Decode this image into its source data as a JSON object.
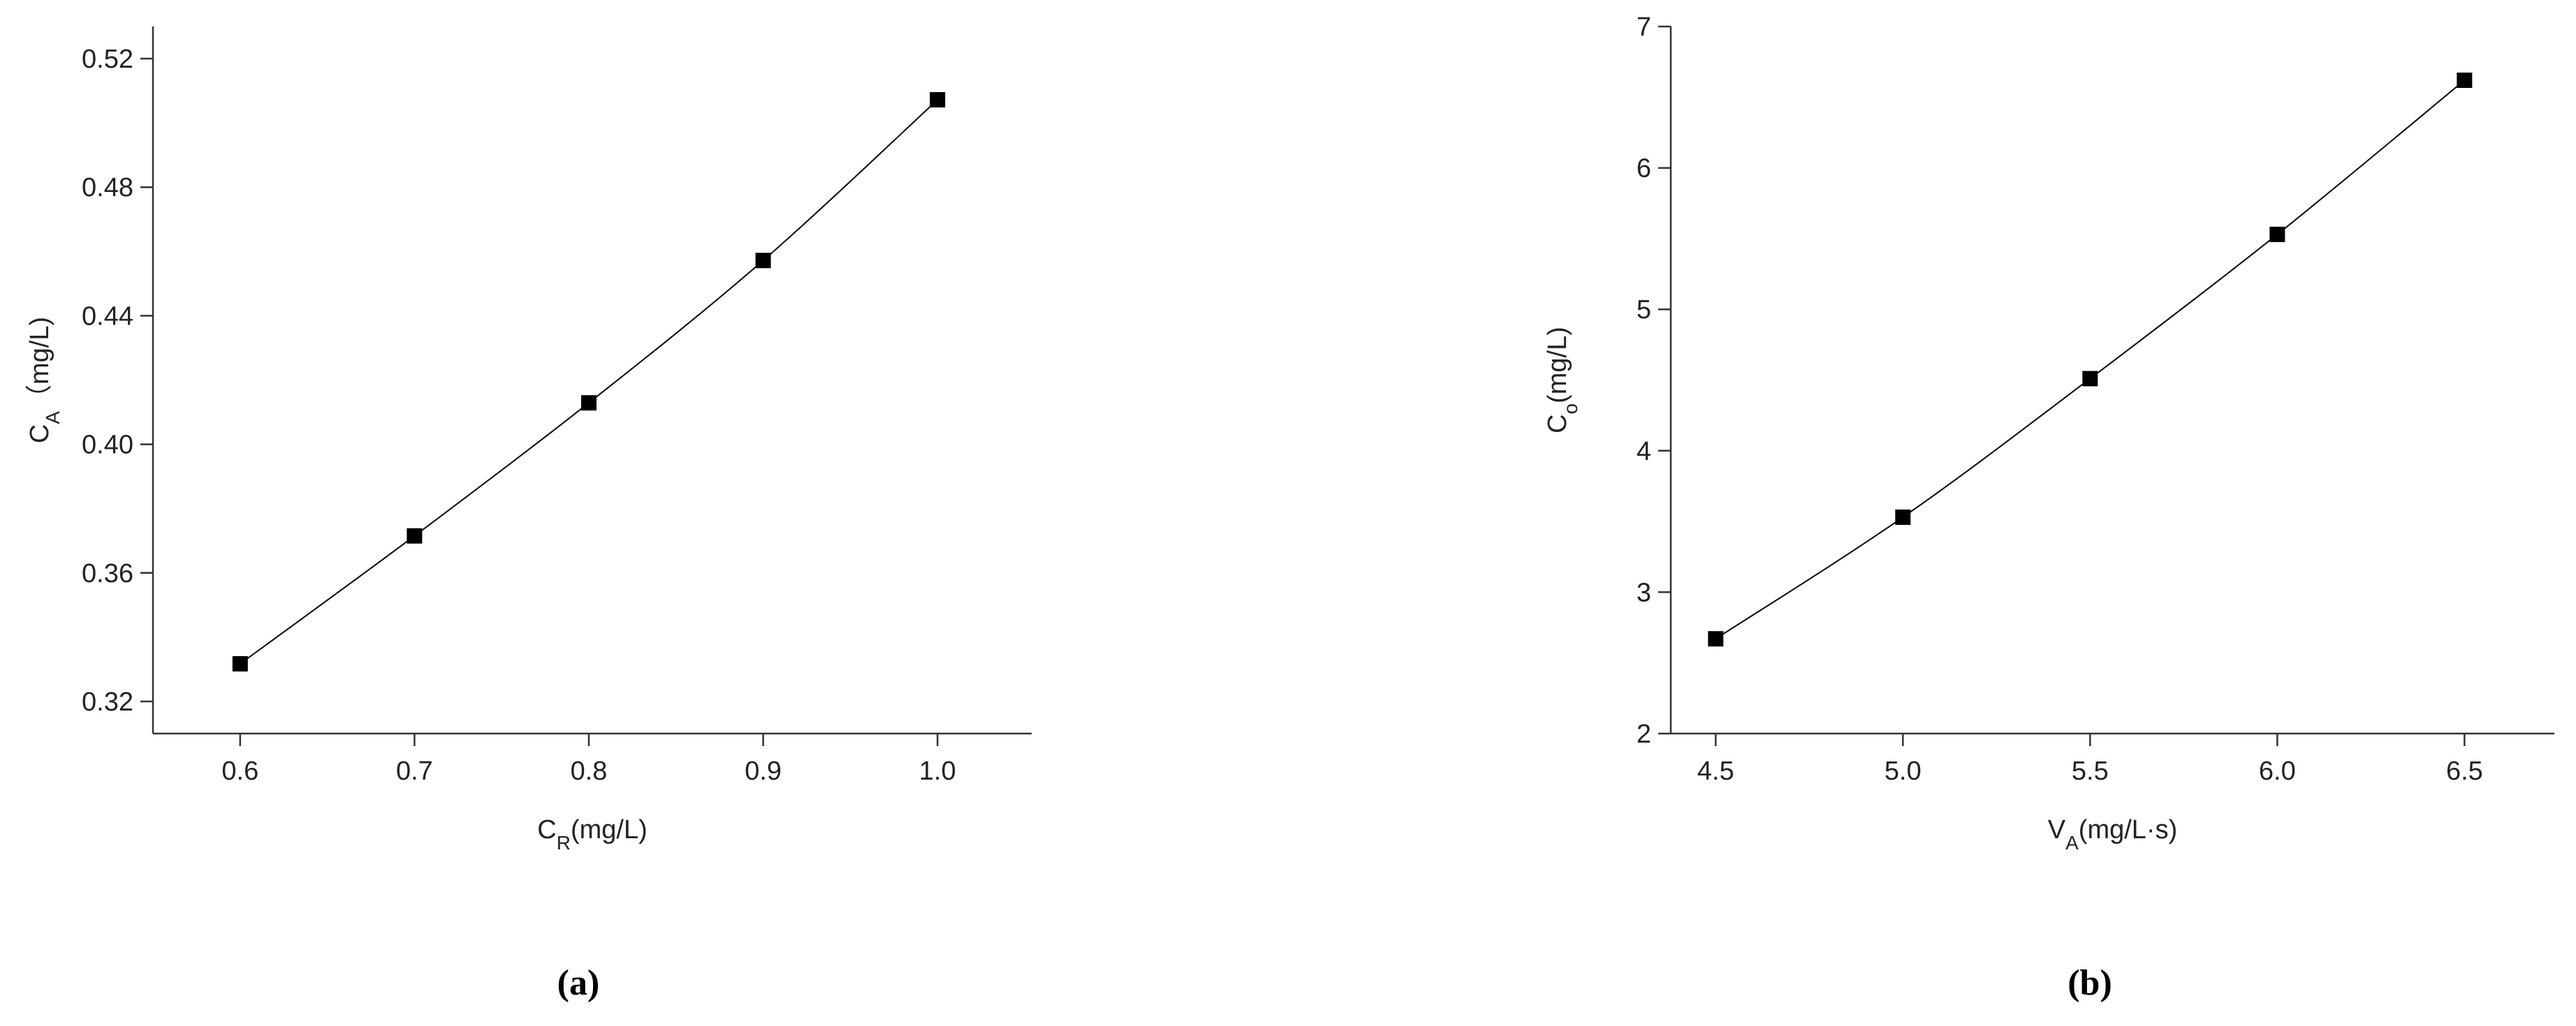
{
  "chart_data": [
    {
      "type": "scatter",
      "panel_label": "(a)",
      "xlabel": [
        "C",
        "R",
        "(mg/L)"
      ],
      "ylabel": [
        "C",
        "A",
        "（mg/L)"
      ],
      "x": [
        0.6,
        0.7,
        0.8,
        0.9,
        1.0
      ],
      "series": [
        {
          "color": "#000000",
          "values": [
            0.3317,
            0.3715,
            0.4129,
            0.4572,
            0.5072
          ]
        }
      ],
      "xlim": [
        0.55,
        1.054
      ],
      "ylim": [
        0.31,
        0.53
      ],
      "xticks": [
        0.6,
        0.7,
        0.8,
        0.9,
        {
          "value": 1.0,
          "label": "1.0"
        }
      ],
      "yticks": [
        0.32,
        0.36,
        {
          "value": 0.4,
          "label": "0.40"
        },
        0.44,
        0.48,
        0.52
      ]
    },
    {
      "type": "scatter",
      "panel_label": "(b)",
      "xlabel": [
        "V",
        "A",
        "(mg/L·s)"
      ],
      "ylabel": [
        "C",
        "o",
        "(mg/L)"
      ],
      "x": [
        4.5,
        5.0,
        5.5,
        6.0,
        6.5
      ],
      "series": [
        {
          "color": "#000000",
          "values": [
            2.67,
            3.53,
            4.51,
            5.53,
            6.62
          ]
        }
      ],
      "xlim": [
        4.38,
        6.74
      ],
      "ylim": [
        2,
        7
      ],
      "xticks": [
        4.5,
        {
          "value": 5.0,
          "label": "5.0"
        },
        5.5,
        {
          "value": 6.0,
          "label": "6.0"
        },
        6.5
      ],
      "yticks": [
        2,
        3,
        4,
        5,
        6,
        7
      ]
    }
  ]
}
